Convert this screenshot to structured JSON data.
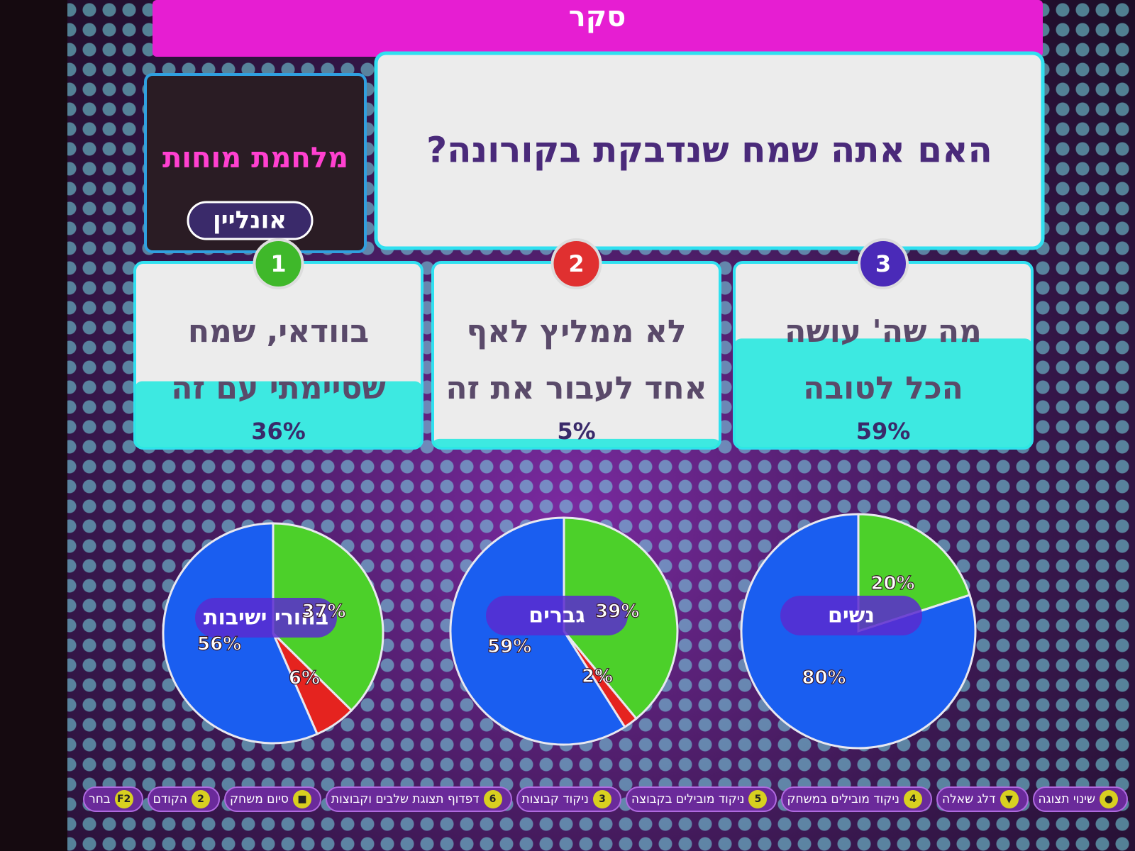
{
  "header": {
    "title": "סקר"
  },
  "logo": {
    "title": "מלחמת מוחות",
    "subtitle": "אונליין"
  },
  "question": "האם אתה שמח שנדבקת בקורונה?",
  "answers": [
    {
      "number": "1",
      "lines": [
        "בוודאי, שמח",
        "שסיימתי עם זה"
      ],
      "percent": {
        "value": 36,
        "label": "36%"
      }
    },
    {
      "number": "2",
      "lines": [
        "לא ממליץ לאף",
        "אחד לעבור את זה"
      ],
      "percent": {
        "value": 5,
        "label": "5%"
      }
    },
    {
      "number": "3",
      "lines": [
        "מה שה' עושה",
        "הכל לטובה"
      ],
      "percent": {
        "value": 59,
        "label": "59%"
      }
    }
  ],
  "chart_data": [
    {
      "type": "pie",
      "title": "בחורי ישיבות",
      "values": [
        37,
        6,
        56
      ],
      "value_labels": [
        "37%",
        "6%",
        "56%"
      ],
      "colors": [
        "#4cd02a",
        "#e5231f",
        "#1a5ef0"
      ]
    },
    {
      "type": "pie",
      "title": "גברים",
      "values": [
        39,
        2,
        59
      ],
      "value_labels": [
        "39%",
        "2%",
        "59%"
      ],
      "colors": [
        "#4cd02a",
        "#e5231f",
        "#1a5ef0"
      ]
    },
    {
      "type": "pie",
      "title": "נשים",
      "values": [
        20,
        80
      ],
      "value_labels": [
        "20%",
        "80%"
      ],
      "colors": [
        "#4cd02a",
        "#1a5ef0"
      ]
    }
  ],
  "toolbar": [
    {
      "key": "●",
      "label": "שינוי תצוגה"
    },
    {
      "key": "▼",
      "label": "דלג שאלה"
    },
    {
      "key": "4",
      "label": "ניקוד מובילים במשחק"
    },
    {
      "key": "5",
      "label": "ניקוד מובילים בקבוצה"
    },
    {
      "key": "3",
      "label": "ניקוד קבוצות"
    },
    {
      "key": "6",
      "label": "דפדוף תצוגת שלבים וקבוצות"
    },
    {
      "key": "■",
      "label": "סיום משחק"
    },
    {
      "key": "2",
      "label": "הקודם"
    },
    {
      "key": "F2",
      "label": "בחר"
    }
  ]
}
